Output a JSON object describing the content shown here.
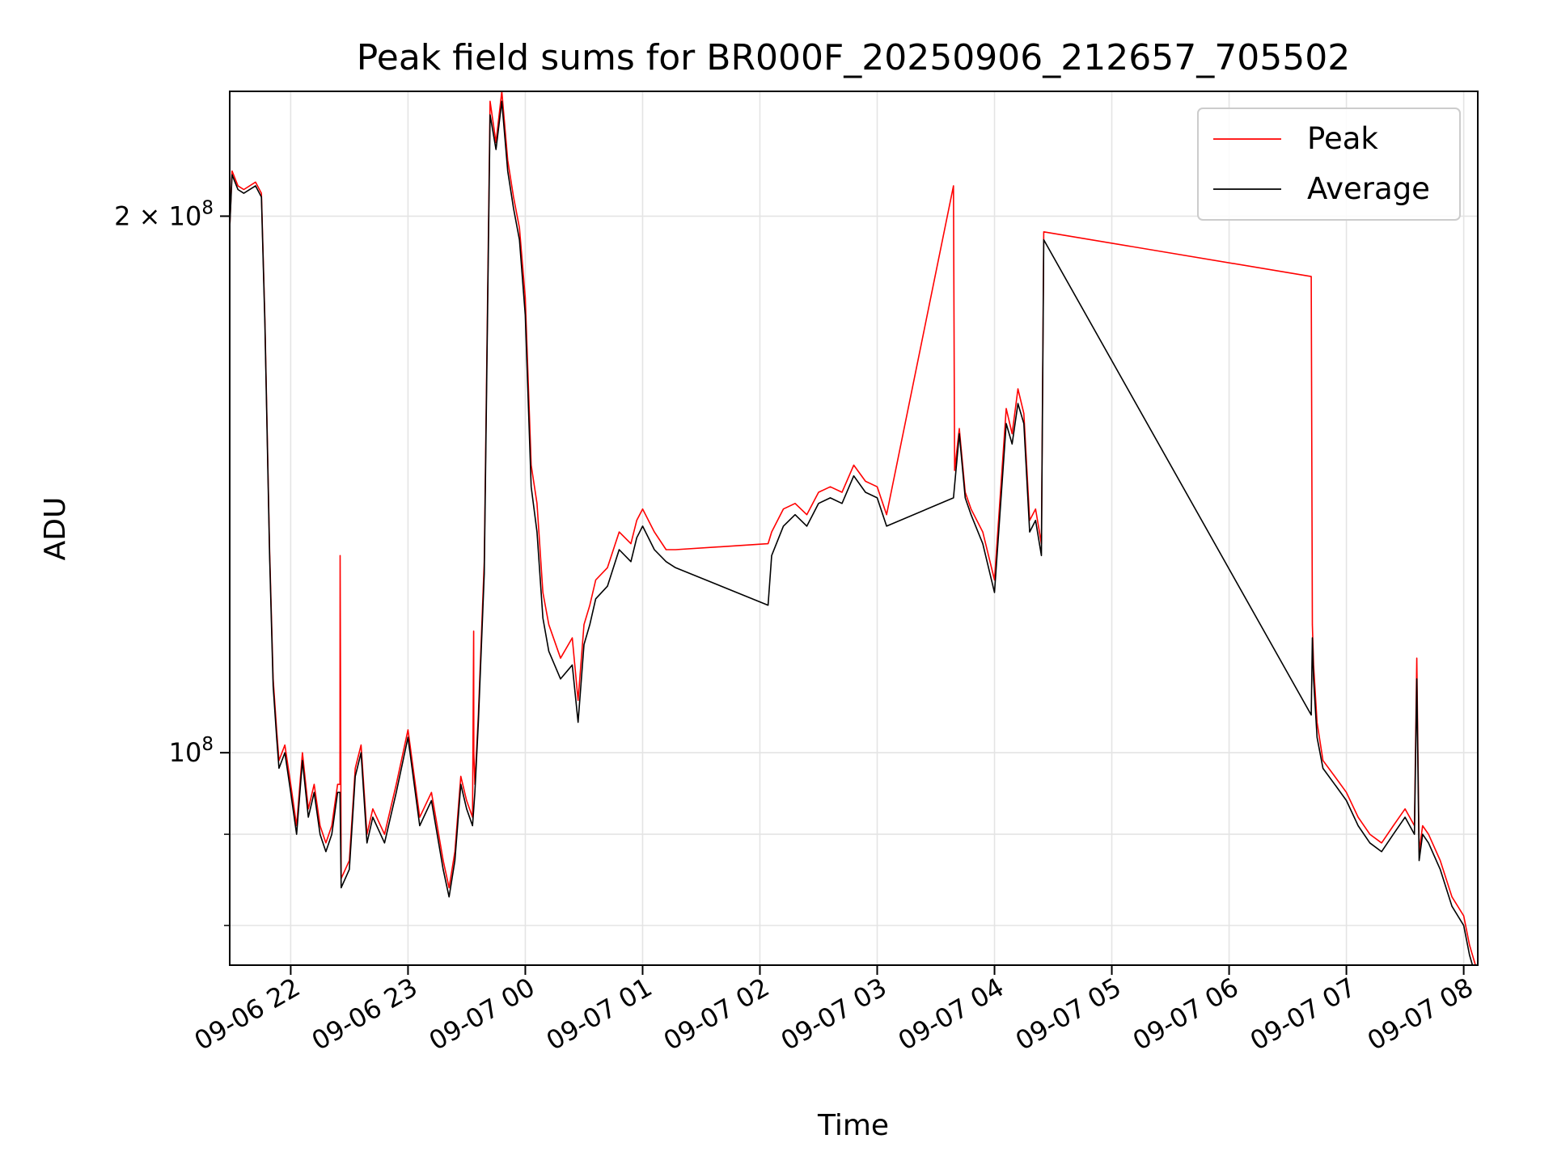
{
  "chart_data": {
    "type": "line",
    "title": "Peak field sums for BR000F_20250906_212657_705502",
    "xlabel": "Time",
    "ylabel": "ADU",
    "x_unit": "hours since 2025-09-06 22:00",
    "xlim": [
      -0.52,
      10.12
    ],
    "ylim": [
      76000000,
      235000000
    ],
    "yscale": "log",
    "grid": true,
    "legend_position": "top-right",
    "x_ticks": [
      {
        "value": 0,
        "label": "09-06 22"
      },
      {
        "value": 1,
        "label": "09-06 23"
      },
      {
        "value": 2,
        "label": "09-07 00"
      },
      {
        "value": 3,
        "label": "09-07 01"
      },
      {
        "value": 4,
        "label": "09-07 02"
      },
      {
        "value": 5,
        "label": "09-07 03"
      },
      {
        "value": 6,
        "label": "09-07 04"
      },
      {
        "value": 7,
        "label": "09-07 05"
      },
      {
        "value": 8,
        "label": "09-07 06"
      },
      {
        "value": 9,
        "label": "09-07 07"
      },
      {
        "value": 10,
        "label": "09-07 08"
      }
    ],
    "y_major_ticks": [
      {
        "value": 100000000,
        "base": "10",
        "exp": "8",
        "coef": ""
      },
      {
        "value": 200000000,
        "base": "10",
        "exp": "8",
        "coef": "2 × "
      }
    ],
    "y_minor_ticks": [
      80000000,
      90000000
    ],
    "series": [
      {
        "name": "Peak",
        "color": "#ff0000",
        "x": [
          -0.52,
          -0.5,
          -0.45,
          -0.4,
          -0.3,
          -0.25,
          -0.22,
          -0.18,
          -0.15,
          -0.12,
          -0.1,
          -0.05,
          0.0,
          0.05,
          0.1,
          0.15,
          0.2,
          0.25,
          0.3,
          0.35,
          0.4,
          0.42,
          0.421,
          0.43,
          0.5,
          0.55,
          0.6,
          0.65,
          0.7,
          0.8,
          0.9,
          1.0,
          1.1,
          1.2,
          1.3,
          1.35,
          1.4,
          1.45,
          1.5,
          1.55,
          1.56,
          1.561,
          1.57,
          1.6,
          1.65,
          1.7,
          1.75,
          1.8,
          1.85,
          1.9,
          1.95,
          2.0,
          2.05,
          2.1,
          2.15,
          2.2,
          2.3,
          2.4,
          2.45,
          2.5,
          2.55,
          2.6,
          2.7,
          2.8,
          2.9,
          2.95,
          3.0,
          3.1,
          3.2,
          3.28,
          4.07,
          4.1,
          4.2,
          4.3,
          4.4,
          4.5,
          4.6,
          4.7,
          4.8,
          4.9,
          5.0,
          5.08,
          5.65,
          5.66,
          5.7,
          5.75,
          5.8,
          5.9,
          6.0,
          6.1,
          6.15,
          6.2,
          6.25,
          6.3,
          6.35,
          6.4,
          6.42,
          8.7,
          8.71,
          8.72,
          8.75,
          8.8,
          8.9,
          9.0,
          9.1,
          9.2,
          9.3,
          9.4,
          9.5,
          9.58,
          9.6,
          9.62,
          9.65,
          9.7,
          9.8,
          9.9,
          10.0,
          10.05,
          10.1
        ],
        "values": [
          197000000,
          212000000,
          208000000,
          207000000,
          209000000,
          206000000,
          175000000,
          130000000,
          110000000,
          103000000,
          99000000,
          101000000,
          96000000,
          91000000,
          100000000,
          93000000,
          96000000,
          91000000,
          89000000,
          91000000,
          96000000,
          96000000,
          129000000,
          85000000,
          87000000,
          98000000,
          101000000,
          90000000,
          93000000,
          90000000,
          96000000,
          103000000,
          92000000,
          95000000,
          87000000,
          84000000,
          88000000,
          97000000,
          94000000,
          92000000,
          117000000,
          100000000,
          96000000,
          105000000,
          128000000,
          232000000,
          220000000,
          235000000,
          215000000,
          205000000,
          197000000,
          180000000,
          145000000,
          138000000,
          123000000,
          118000000,
          113000000,
          116000000,
          107000000,
          118000000,
          121000000,
          125000000,
          127000000,
          133000000,
          131000000,
          135000000,
          137000000,
          133000000,
          130000000,
          130000000,
          131000000,
          133000000,
          137000000,
          138000000,
          136000000,
          140000000,
          141000000,
          140000000,
          145000000,
          142000000,
          141000000,
          136000000,
          208000000,
          144000000,
          152000000,
          140000000,
          137000000,
          133000000,
          125000000,
          156000000,
          151000000,
          160000000,
          155000000,
          135000000,
          137000000,
          131000000,
          196000000,
          185000000,
          118000000,
          112000000,
          104000000,
          99000000,
          97000000,
          95000000,
          92000000,
          90000000,
          89000000,
          91000000,
          93000000,
          91000000,
          113000000,
          88000000,
          91000000,
          90000000,
          87000000,
          83000000,
          81000000,
          78000000,
          76000000
        ]
      },
      {
        "name": "Average",
        "color": "#000000",
        "x": [
          -0.52,
          -0.5,
          -0.45,
          -0.4,
          -0.3,
          -0.25,
          -0.22,
          -0.18,
          -0.15,
          -0.12,
          -0.1,
          -0.05,
          0.0,
          0.05,
          0.1,
          0.15,
          0.2,
          0.25,
          0.3,
          0.35,
          0.4,
          0.42,
          0.43,
          0.5,
          0.55,
          0.6,
          0.65,
          0.7,
          0.8,
          0.9,
          1.0,
          1.1,
          1.2,
          1.3,
          1.35,
          1.4,
          1.45,
          1.5,
          1.55,
          1.57,
          1.6,
          1.65,
          1.7,
          1.75,
          1.8,
          1.85,
          1.9,
          1.95,
          2.0,
          2.05,
          2.1,
          2.15,
          2.2,
          2.3,
          2.4,
          2.45,
          2.5,
          2.55,
          2.6,
          2.7,
          2.8,
          2.9,
          2.95,
          3.0,
          3.1,
          3.2,
          3.28,
          4.07,
          4.1,
          4.2,
          4.3,
          4.4,
          4.5,
          4.6,
          4.7,
          4.8,
          4.9,
          5.0,
          5.08,
          5.65,
          5.7,
          5.75,
          5.8,
          5.9,
          6.0,
          6.1,
          6.15,
          6.2,
          6.25,
          6.3,
          6.35,
          6.4,
          6.42,
          8.7,
          8.71,
          8.72,
          8.75,
          8.8,
          8.9,
          9.0,
          9.1,
          9.2,
          9.3,
          9.4,
          9.5,
          9.58,
          9.6,
          9.62,
          9.65,
          9.7,
          9.8,
          9.9,
          10.0,
          10.05,
          10.1
        ],
        "values": [
          197000000,
          211000000,
          207000000,
          206000000,
          208000000,
          205000000,
          174000000,
          129000000,
          109000000,
          102000000,
          98000000,
          100000000,
          95000000,
          90000000,
          99000000,
          92000000,
          95000000,
          90000000,
          88000000,
          90000000,
          95000000,
          95000000,
          84000000,
          86000000,
          97000000,
          100000000,
          89000000,
          92000000,
          89000000,
          95000000,
          102000000,
          91000000,
          94000000,
          86000000,
          83000000,
          87000000,
          96000000,
          93000000,
          91000000,
          95000000,
          104000000,
          126000000,
          228000000,
          218000000,
          232000000,
          212000000,
          202000000,
          194000000,
          176000000,
          141000000,
          133000000,
          119000000,
          114000000,
          110000000,
          112000000,
          104000000,
          115000000,
          118000000,
          122000000,
          124000000,
          130000000,
          128000000,
          132000000,
          134000000,
          130000000,
          128000000,
          127000000,
          121000000,
          129000000,
          134000000,
          136000000,
          134000000,
          138000000,
          139000000,
          138000000,
          143000000,
          140000000,
          139000000,
          134000000,
          139000000,
          151000000,
          139000000,
          136000000,
          131000000,
          123000000,
          153000000,
          149000000,
          157000000,
          153000000,
          133000000,
          135000000,
          129000000,
          194000000,
          105000000,
          116000000,
          110000000,
          102000000,
          98000000,
          96000000,
          94000000,
          91000000,
          89000000,
          88000000,
          90000000,
          92000000,
          90000000,
          110000000,
          87000000,
          90000000,
          89000000,
          86000000,
          82000000,
          80000000,
          77000000,
          75000000
        ]
      }
    ]
  }
}
